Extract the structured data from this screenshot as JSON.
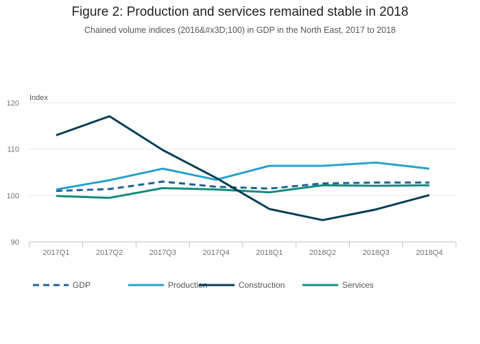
{
  "chart_data": {
    "type": "line",
    "title": "Figure 2: Production and services remained stable in 2018",
    "subtitle": "Chained volume indices (2016&#x3D;100) in GDP in the North East, 2017 to 2018",
    "ylabel": "Index",
    "xlabel": "",
    "ylim": [
      90,
      120
    ],
    "yticks": [
      90,
      100,
      110,
      120
    ],
    "grid": true,
    "legend_position": "bottom-left",
    "categories": [
      "2017Q1",
      "2017Q2",
      "2017Q3",
      "2017Q4",
      "2018Q1",
      "2018Q2",
      "2018Q3",
      "2018Q4"
    ],
    "series": [
      {
        "name": "GDP",
        "color": "#206095",
        "dashed": true,
        "values": [
          101.0,
          101.4,
          103.0,
          101.9,
          101.5,
          102.6,
          102.8,
          102.8
        ]
      },
      {
        "name": "Production",
        "color": "#27a0cc",
        "dashed": false,
        "values": [
          101.3,
          103.3,
          105.8,
          103.4,
          106.4,
          106.4,
          107.1,
          105.8
        ]
      },
      {
        "name": "Construction",
        "color": "#003c57",
        "dashed": false,
        "values": [
          113.0,
          117.1,
          109.8,
          103.8,
          97.1,
          94.7,
          97.0,
          100.1
        ]
      },
      {
        "name": "Services",
        "color": "#118c7b",
        "dashed": false,
        "values": [
          99.9,
          99.5,
          101.6,
          101.3,
          100.7,
          102.2,
          102.1,
          102.2
        ]
      }
    ]
  }
}
